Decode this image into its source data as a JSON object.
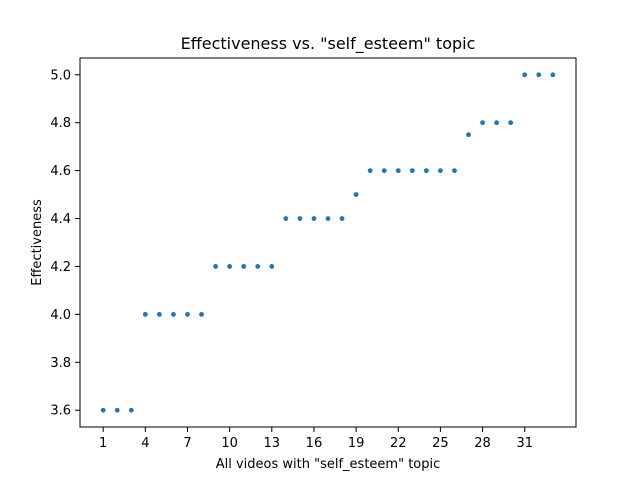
{
  "chart_data": {
    "type": "scatter",
    "title": "Effectiveness vs. \"self_esteem\" topic",
    "xlabel": "All videos with \"self_esteem\" topic",
    "ylabel": "Effectiveness",
    "xlim": [
      -0.65,
      34.65
    ],
    "ylim": [
      3.53,
      5.07
    ],
    "xticks": [
      1,
      4,
      7,
      10,
      13,
      16,
      19,
      22,
      25,
      28,
      31
    ],
    "yticks": [
      3.6,
      3.8,
      4.0,
      4.2,
      4.4,
      4.6,
      4.8,
      5.0
    ],
    "ytick_labels": [
      "3.6",
      "3.8",
      "4.0",
      "4.2",
      "4.4",
      "4.6",
      "4.8",
      "5.0"
    ],
    "grid": false,
    "marker_color": "#1f77b4",
    "x": [
      1,
      2,
      3,
      4,
      5,
      6,
      7,
      8,
      9,
      10,
      11,
      12,
      13,
      14,
      15,
      16,
      17,
      18,
      19,
      20,
      21,
      22,
      23,
      24,
      25,
      26,
      27,
      28,
      29,
      30,
      31,
      32,
      33
    ],
    "y": [
      3.6,
      3.6,
      3.6,
      4.0,
      4.0,
      4.0,
      4.0,
      4.0,
      4.2,
      4.2,
      4.2,
      4.2,
      4.2,
      4.4,
      4.4,
      4.4,
      4.4,
      4.4,
      4.5,
      4.6,
      4.6,
      4.6,
      4.6,
      4.6,
      4.6,
      4.6,
      4.75,
      4.8,
      4.8,
      4.8,
      5.0,
      5.0,
      5.0
    ]
  }
}
